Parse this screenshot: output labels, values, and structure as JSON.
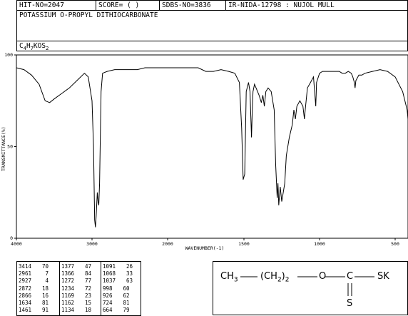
{
  "header": {
    "hit_no": "HIT-NO=2047",
    "score": "SCORE=  (  )",
    "sdbs_no": "SDBS-NO=3836",
    "method": "IR-NIDA-12798 : NUJOL MULL",
    "compound_name": "POTASSIUM O-PROPYL DITHIOCARBONATE",
    "formula_main": "C",
    "formula_sub1": "4",
    "formula_mid": "H",
    "formula_sub2": "7",
    "formula_end": "KOS",
    "formula_sub3": "2"
  },
  "chart_data": {
    "type": "line",
    "xlabel": "WAVENUMBER(-1)",
    "ylabel": "TRANSMITTANCE(%)",
    "x_ticks": [
      "4000",
      "3000",
      "2000",
      "1500",
      "1000",
      "500"
    ],
    "y_ticks": [
      "100",
      "50",
      "0"
    ],
    "ylim": [
      0,
      100
    ],
    "x_axis": "wavenumber, piecewise scale: 4000-2000 compressed, 2000-400 expanded",
    "series": [
      {
        "points": [
          [
            4000,
            93
          ],
          [
            3900,
            92
          ],
          [
            3800,
            89
          ],
          [
            3700,
            84
          ],
          [
            3620,
            75
          ],
          [
            3560,
            74
          ],
          [
            3500,
            76
          ],
          [
            3400,
            79
          ],
          [
            3300,
            82
          ],
          [
            3200,
            86
          ],
          [
            3100,
            90
          ],
          [
            3050,
            88
          ],
          [
            3000,
            75
          ],
          [
            2980,
            50
          ],
          [
            2965,
            10
          ],
          [
            2955,
            6
          ],
          [
            2945,
            12
          ],
          [
            2930,
            25
          ],
          [
            2920,
            20
          ],
          [
            2910,
            18
          ],
          [
            2900,
            30
          ],
          [
            2880,
            80
          ],
          [
            2860,
            90
          ],
          [
            2800,
            91
          ],
          [
            2700,
            92
          ],
          [
            2600,
            92
          ],
          [
            2500,
            92
          ],
          [
            2400,
            92
          ],
          [
            2300,
            93
          ],
          [
            2200,
            93
          ],
          [
            2100,
            93
          ],
          [
            2000,
            93
          ],
          [
            1900,
            93
          ],
          [
            1800,
            93
          ],
          [
            1750,
            91
          ],
          [
            1700,
            91
          ],
          [
            1650,
            92
          ],
          [
            1600,
            91
          ],
          [
            1560,
            90
          ],
          [
            1530,
            85
          ],
          [
            1515,
            60
          ],
          [
            1505,
            32
          ],
          [
            1495,
            35
          ],
          [
            1485,
            80
          ],
          [
            1470,
            85
          ],
          [
            1460,
            80
          ],
          [
            1450,
            55
          ],
          [
            1445,
            70
          ],
          [
            1440,
            80
          ],
          [
            1430,
            84
          ],
          [
            1420,
            82
          ],
          [
            1400,
            78
          ],
          [
            1385,
            74
          ],
          [
            1375,
            78
          ],
          [
            1365,
            72
          ],
          [
            1355,
            80
          ],
          [
            1340,
            82
          ],
          [
            1320,
            80
          ],
          [
            1300,
            70
          ],
          [
            1290,
            40
          ],
          [
            1280,
            22
          ],
          [
            1275,
            30
          ],
          [
            1270,
            18
          ],
          [
            1260,
            28
          ],
          [
            1250,
            20
          ],
          [
            1240,
            25
          ],
          [
            1230,
            30
          ],
          [
            1220,
            45
          ],
          [
            1200,
            55
          ],
          [
            1180,
            62
          ],
          [
            1170,
            70
          ],
          [
            1160,
            65
          ],
          [
            1150,
            72
          ],
          [
            1130,
            75
          ],
          [
            1110,
            72
          ],
          [
            1100,
            65
          ],
          [
            1095,
            70
          ],
          [
            1080,
            82
          ],
          [
            1060,
            85
          ],
          [
            1040,
            88
          ],
          [
            1025,
            72
          ],
          [
            1020,
            85
          ],
          [
            1000,
            90
          ],
          [
            980,
            91
          ],
          [
            950,
            91
          ],
          [
            900,
            91
          ],
          [
            870,
            91
          ],
          [
            850,
            90
          ],
          [
            830,
            90
          ],
          [
            810,
            91
          ],
          [
            790,
            90
          ],
          [
            780,
            88
          ],
          [
            770,
            85
          ],
          [
            765,
            82
          ],
          [
            760,
            86
          ],
          [
            740,
            89
          ],
          [
            720,
            89
          ],
          [
            700,
            90
          ],
          [
            650,
            91
          ],
          [
            600,
            92
          ],
          [
            550,
            91
          ],
          [
            500,
            88
          ],
          [
            450,
            80
          ],
          [
            420,
            70
          ],
          [
            400,
            65
          ]
        ]
      }
    ]
  },
  "peak_table": [
    {
      "wn": "3414",
      "t": "70"
    },
    {
      "wn": "2961",
      "t": "7"
    },
    {
      "wn": "2927",
      "t": "4"
    },
    {
      "wn": "2872",
      "t": "18"
    },
    {
      "wn": "2866",
      "t": "16"
    },
    {
      "wn": "1634",
      "t": "81"
    },
    {
      "wn": "1461",
      "t": "91"
    },
    {
      "wn": "1377",
      "t": "47"
    },
    {
      "wn": "1366",
      "t": "84"
    },
    {
      "wn": "1272",
      "t": "77"
    },
    {
      "wn": "1234",
      "t": "72"
    },
    {
      "wn": "1169",
      "t": "23"
    },
    {
      "wn": "1162",
      "t": "15"
    },
    {
      "wn": "1134",
      "t": "18"
    },
    {
      "wn": "1091",
      "t": "26"
    },
    {
      "wn": "1068",
      "t": "33"
    },
    {
      "wn": "1037",
      "t": "63"
    },
    {
      "wn": "998",
      "t": "60"
    },
    {
      "wn": "926",
      "t": "62"
    },
    {
      "wn": "724",
      "t": "81"
    },
    {
      "wn": "664",
      "t": "79"
    }
  ],
  "structure": {
    "ch3": "CH",
    "ch3_sub": "3",
    "open_paren": "(CH",
    "ch2_sub": "2",
    "close_paren": ")",
    "repeat_sub": "2",
    "o": "O",
    "c": "C",
    "sk": "SK",
    "s": "S"
  }
}
